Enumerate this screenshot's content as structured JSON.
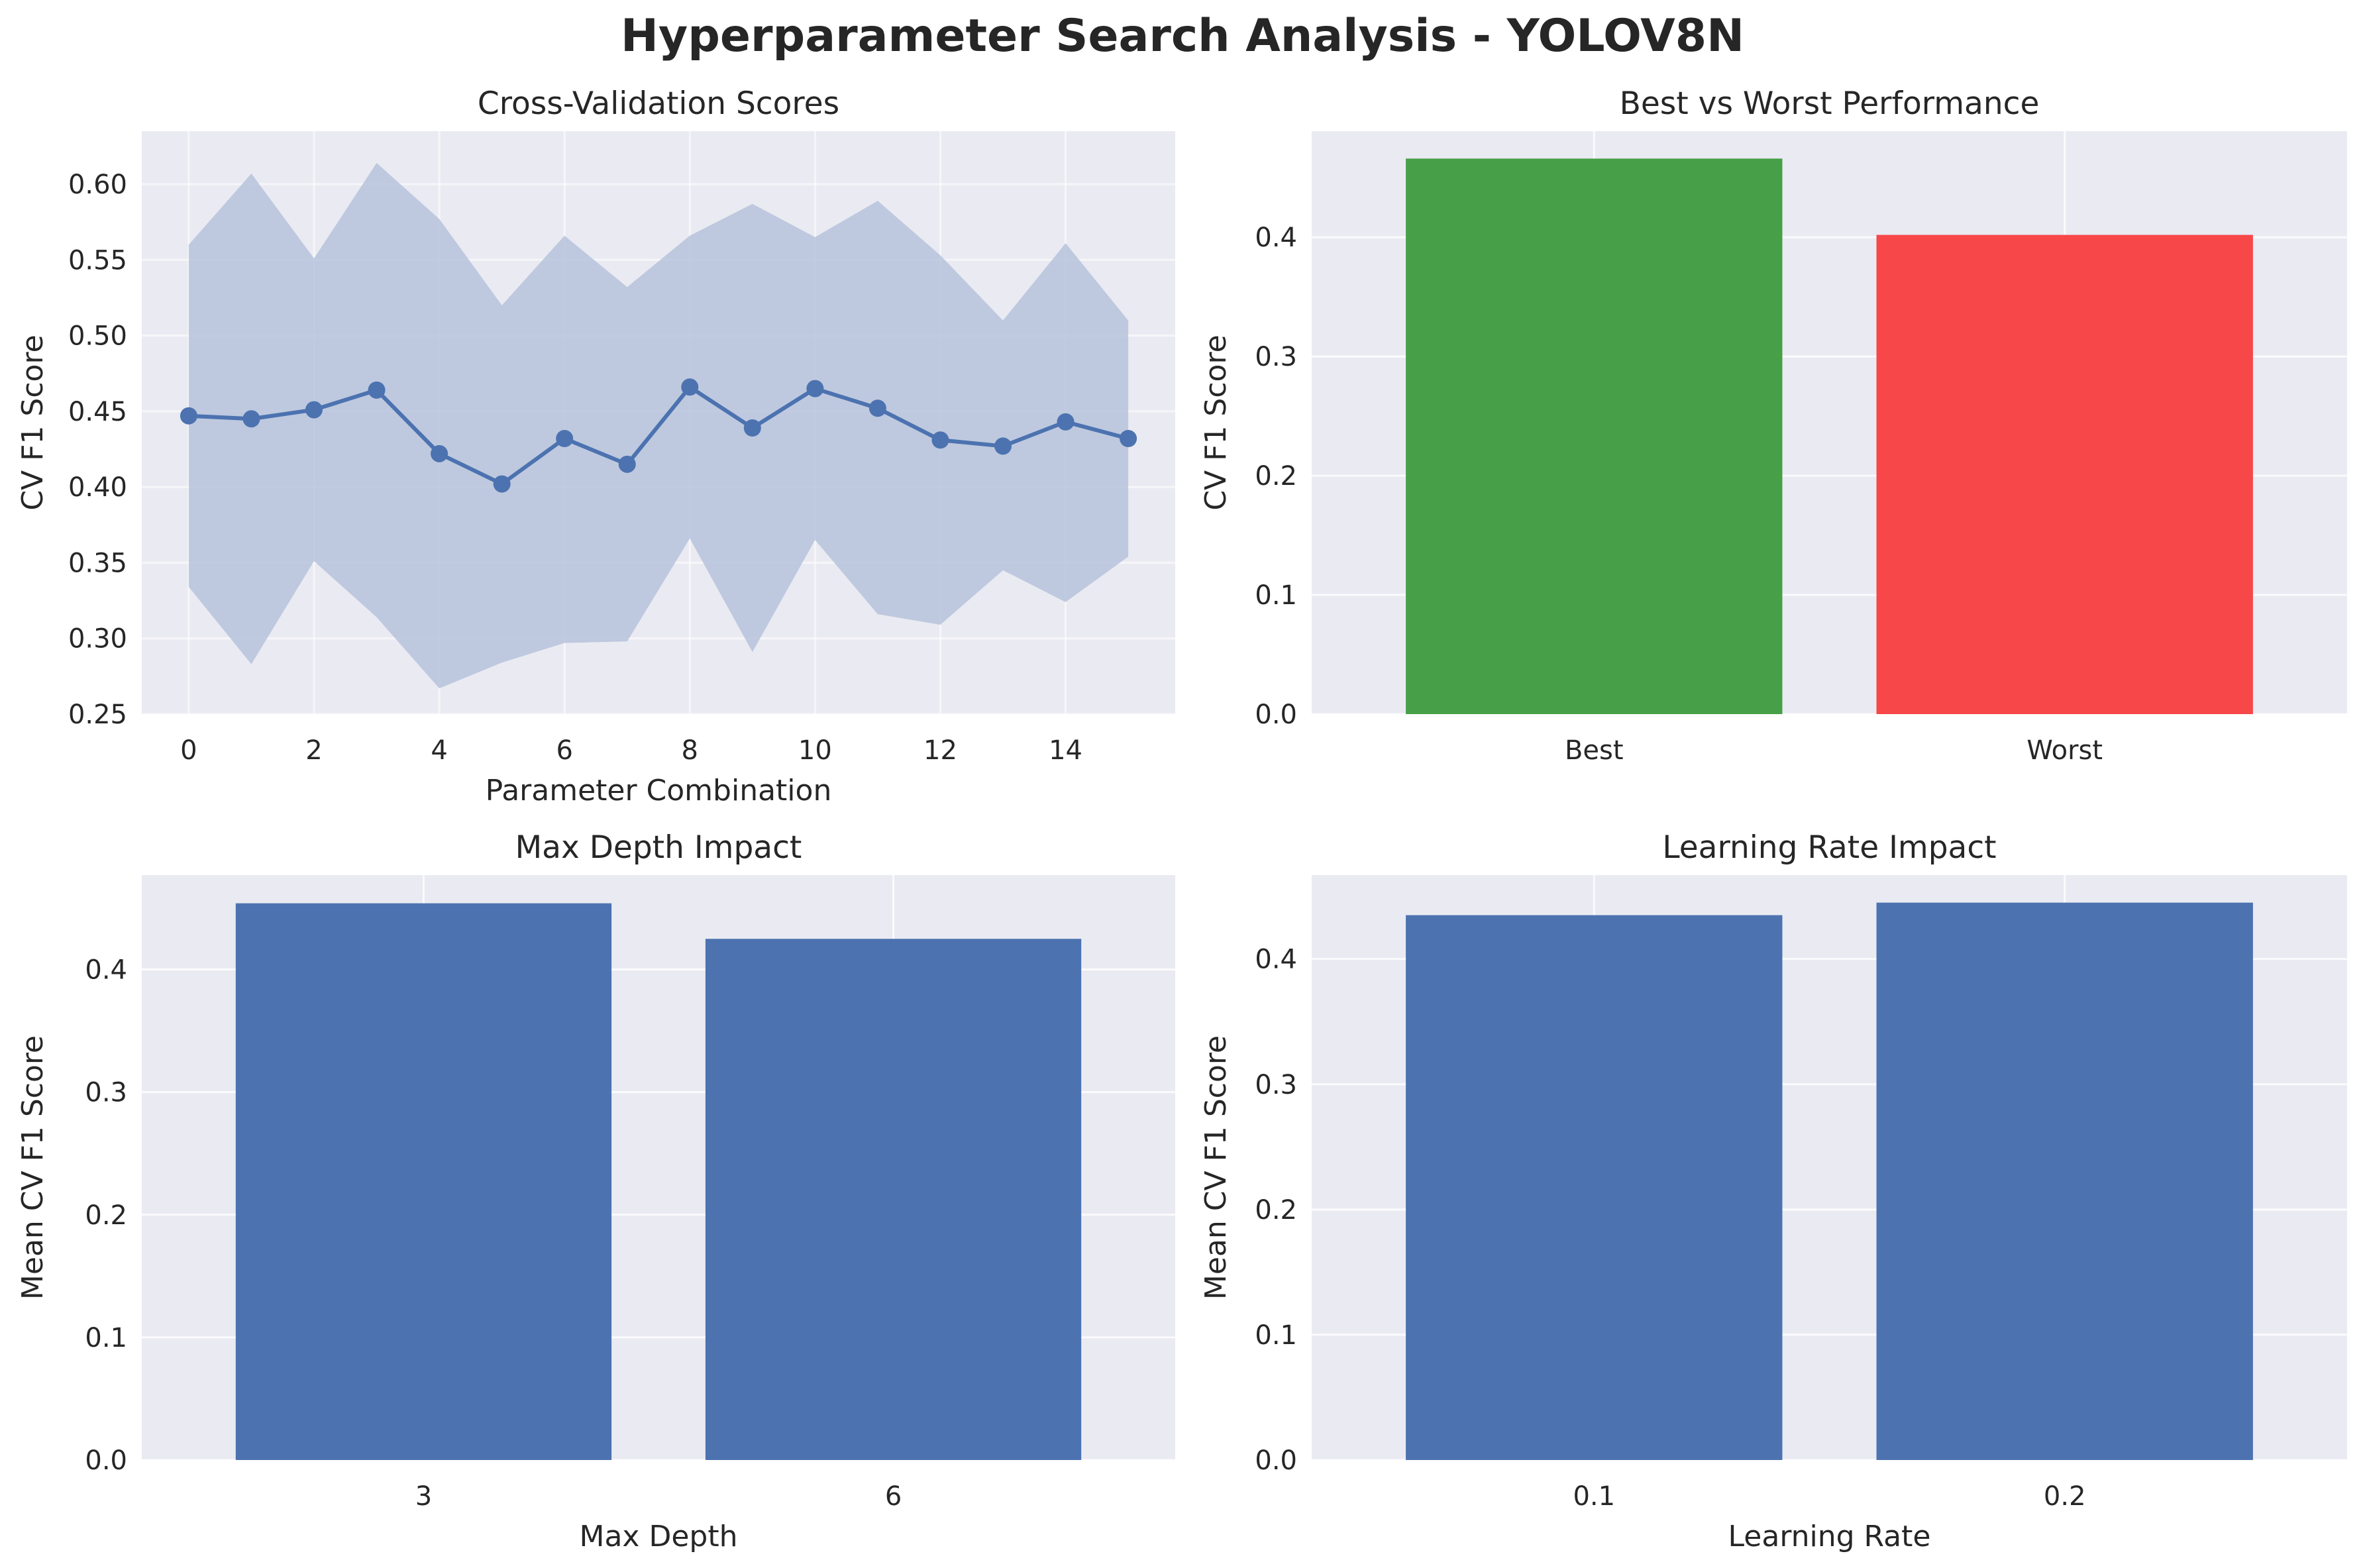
{
  "figure": {
    "suptitle": "Hyperparameter Search Analysis - YOLOV8N",
    "background": "#ffffff",
    "axes_face": "#eaeaf2",
    "grid_color": "#ffffff"
  },
  "chart_data": [
    {
      "type": "line",
      "title": "Cross-Validation Scores",
      "xlabel": "Parameter Combination",
      "ylabel": "CV F1 Score",
      "x": [
        0,
        1,
        2,
        3,
        4,
        5,
        6,
        7,
        8,
        9,
        10,
        11,
        12,
        13,
        14,
        15
      ],
      "xticks": [
        0,
        2,
        4,
        6,
        8,
        10,
        12,
        14
      ],
      "xlim": [
        -0.75,
        15.75
      ],
      "ylim": [
        0.25,
        0.635
      ],
      "yticks": [
        0.25,
        0.3,
        0.35,
        0.4,
        0.45,
        0.5,
        0.55,
        0.6
      ],
      "ytick_labels": [
        "0.25",
        "0.30",
        "0.35",
        "0.40",
        "0.45",
        "0.50",
        "0.55",
        "0.60"
      ],
      "grid": true,
      "series": [
        {
          "values": [
            0.447,
            0.445,
            0.451,
            0.464,
            0.422,
            0.402,
            0.432,
            0.415,
            0.466,
            0.439,
            0.465,
            0.452,
            0.431,
            0.427,
            0.443,
            0.432
          ],
          "upper": [
            0.56,
            0.607,
            0.551,
            0.614,
            0.577,
            0.52,
            0.566,
            0.532,
            0.566,
            0.587,
            0.565,
            0.589,
            0.553,
            0.51,
            0.561,
            0.51
          ],
          "lower": [
            0.334,
            0.283,
            0.351,
            0.314,
            0.267,
            0.284,
            0.297,
            0.298,
            0.366,
            0.291,
            0.365,
            0.316,
            0.309,
            0.345,
            0.324,
            0.354
          ],
          "color": "#4c72b0",
          "band_color": "#b6c3dc"
        }
      ]
    },
    {
      "type": "bar",
      "title": "Best vs Worst Performance",
      "xlabel": "",
      "ylabel": "CV F1 Score",
      "categories": [
        "Best",
        "Worst"
      ],
      "values": [
        0.466,
        0.402
      ],
      "colors": [
        "#47a047",
        "#f74749"
      ],
      "ylim": [
        0,
        0.489
      ],
      "yticks": [
        0,
        0.1,
        0.2,
        0.3,
        0.4
      ],
      "ytick_labels": [
        "0.0",
        "0.1",
        "0.2",
        "0.3",
        "0.4"
      ],
      "grid": true
    },
    {
      "type": "bar",
      "title": "Max Depth Impact",
      "xlabel": "Max Depth",
      "ylabel": "Mean CV F1 Score",
      "categories": [
        "3",
        "6"
      ],
      "values": [
        0.454,
        0.425
      ],
      "colors": [
        "#4c72b0",
        "#4c72b0"
      ],
      "ylim": [
        0,
        0.477
      ],
      "yticks": [
        0,
        0.1,
        0.2,
        0.3,
        0.4
      ],
      "ytick_labels": [
        "0.0",
        "0.1",
        "0.2",
        "0.3",
        "0.4"
      ],
      "grid": true
    },
    {
      "type": "bar",
      "title": "Learning Rate Impact",
      "xlabel": "Learning Rate",
      "ylabel": "Mean CV F1 Score",
      "categories": [
        "0.1",
        "0.2"
      ],
      "values": [
        0.435,
        0.445
      ],
      "colors": [
        "#4c72b0",
        "#4c72b0"
      ],
      "ylim": [
        0,
        0.467
      ],
      "yticks": [
        0,
        0.1,
        0.2,
        0.3,
        0.4
      ],
      "ytick_labels": [
        "0.0",
        "0.1",
        "0.2",
        "0.3",
        "0.4"
      ],
      "grid": true
    }
  ]
}
